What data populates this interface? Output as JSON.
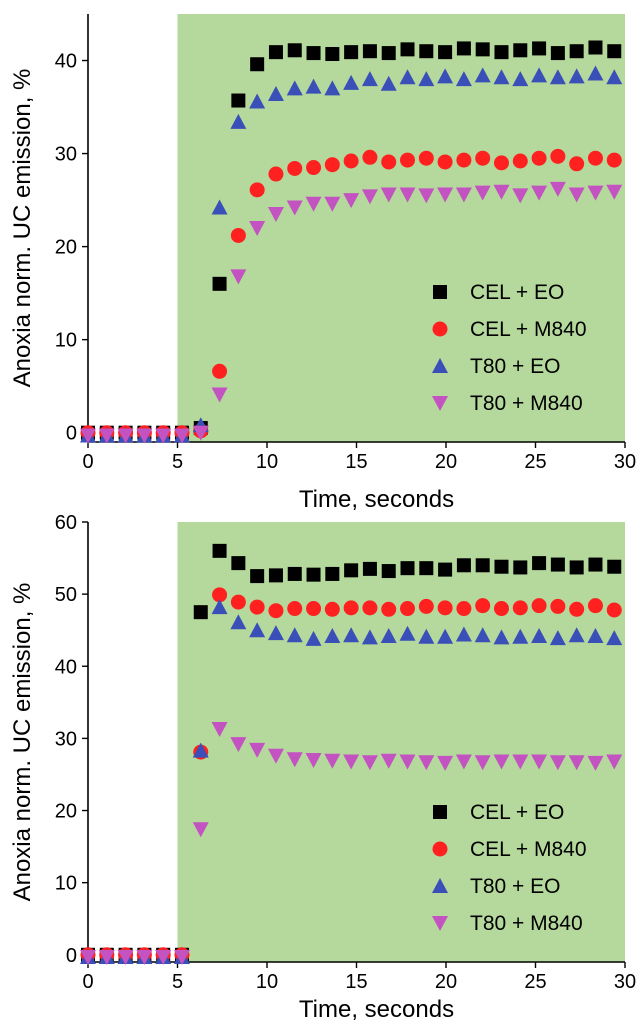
{
  "chart_data": [
    {
      "type": "scatter",
      "title": "",
      "xlabel": "Time, seconds",
      "ylabel": "Anoxia norm. UC emission, %",
      "xlim": [
        0,
        30
      ],
      "ylim": [
        -1,
        45
      ],
      "xticks": [
        0,
        5,
        10,
        15,
        20,
        25,
        30
      ],
      "yticks": [
        0,
        10,
        20,
        30,
        40
      ],
      "shaded_region": {
        "x_from": 5,
        "x_to": 30,
        "color": "#b5d99c"
      },
      "legend_position": "bottom-right",
      "x": [
        0,
        1.05,
        2.1,
        3.15,
        4.2,
        5.25,
        6.3,
        7.35,
        8.4,
        9.45,
        10.5,
        11.55,
        12.6,
        13.65,
        14.7,
        15.75,
        16.8,
        17.85,
        18.9,
        19.95,
        21,
        22.05,
        23.1,
        24.15,
        25.2,
        26.25,
        27.3,
        28.35,
        29.4
      ],
      "series": [
        {
          "name": "CEL + EO",
          "marker": "square",
          "color": "#000000",
          "values": [
            0,
            0,
            0,
            0,
            0,
            0,
            0.5,
            16,
            35.7,
            39.6,
            40.9,
            41.1,
            40.8,
            40.7,
            40.9,
            41.0,
            40.8,
            41.2,
            41.0,
            40.9,
            41.3,
            41.2,
            40.9,
            41.1,
            41.3,
            40.8,
            41.0,
            41.4,
            41.0
          ]
        },
        {
          "name": "CEL + M840",
          "marker": "circle",
          "color": "#ff2020",
          "values": [
            0,
            0,
            0,
            0,
            0,
            0,
            0.2,
            6.6,
            21.2,
            26.1,
            27.8,
            28.4,
            28.5,
            28.8,
            29.2,
            29.6,
            29.1,
            29.3,
            29.5,
            29.1,
            29.3,
            29.5,
            29.0,
            29.2,
            29.5,
            29.7,
            28.9,
            29.5,
            29.3
          ]
        },
        {
          "name": "T80 + EO",
          "marker": "triangle-up",
          "color": "#3a50b8",
          "values": [
            -0.3,
            -0.3,
            -0.3,
            -0.3,
            -0.3,
            -0.3,
            0.8,
            24.2,
            33.4,
            35.6,
            36.4,
            37.0,
            37.2,
            37.0,
            37.6,
            38.0,
            37.5,
            38.2,
            38.0,
            38.3,
            38.0,
            38.4,
            38.2,
            38.0,
            38.4,
            38.2,
            38.3,
            38.6,
            38.2
          ]
        },
        {
          "name": "T80 + M840",
          "marker": "triangle-down",
          "color": "#c253c0",
          "values": [
            -0.3,
            -0.3,
            -0.3,
            -0.3,
            -0.3,
            -0.3,
            0,
            4.1,
            16.8,
            22.0,
            23.5,
            24.2,
            24.6,
            24.6,
            25.0,
            25.4,
            25.6,
            25.6,
            25.5,
            25.6,
            25.6,
            25.8,
            25.9,
            25.5,
            25.8,
            26.2,
            25.6,
            25.8,
            25.9
          ]
        }
      ]
    },
    {
      "type": "scatter",
      "title": "",
      "xlabel": "Time, seconds",
      "ylabel": "Anoxia norm. UC emission, %",
      "xlim": [
        0,
        30
      ],
      "ylim": [
        -1,
        60
      ],
      "xticks": [
        0,
        5,
        10,
        15,
        20,
        25,
        30
      ],
      "yticks": [
        0,
        10,
        20,
        30,
        40,
        50,
        60
      ],
      "shaded_region": {
        "x_from": 5,
        "x_to": 30,
        "color": "#b5d99c"
      },
      "legend_position": "bottom-right",
      "x": [
        0,
        1.05,
        2.1,
        3.15,
        4.2,
        5.25,
        6.3,
        7.35,
        8.4,
        9.45,
        10.5,
        11.55,
        12.6,
        13.65,
        14.7,
        15.75,
        16.8,
        17.85,
        18.9,
        19.95,
        21,
        22.05,
        23.1,
        24.15,
        25.2,
        26.25,
        27.3,
        28.35,
        29.4
      ],
      "series": [
        {
          "name": "CEL + EO",
          "marker": "square",
          "color": "#000000",
          "values": [
            0,
            0,
            0,
            0,
            0,
            0,
            47.5,
            56.0,
            54.3,
            52.5,
            52.6,
            52.8,
            52.7,
            52.8,
            53.3,
            53.5,
            53.2,
            53.6,
            53.6,
            53.4,
            54.0,
            54.0,
            53.8,
            53.7,
            54.3,
            54.1,
            53.7,
            54.1,
            53.8
          ]
        },
        {
          "name": "CEL + M840",
          "marker": "circle",
          "color": "#ff2020",
          "values": [
            0,
            0,
            0,
            0,
            0,
            0,
            28.1,
            49.9,
            48.9,
            48.2,
            47.7,
            48.0,
            48.0,
            47.9,
            48.1,
            48.1,
            47.9,
            48.0,
            48.3,
            48.1,
            48.0,
            48.4,
            48.0,
            48.1,
            48.4,
            48.3,
            47.9,
            48.4,
            47.8
          ]
        },
        {
          "name": "T80 + EO",
          "marker": "triangle-up",
          "color": "#3a50b8",
          "values": [
            -0.3,
            -0.3,
            -0.3,
            -0.3,
            -0.3,
            -0.3,
            28.3,
            48.2,
            46.1,
            45.0,
            44.6,
            44.3,
            43.8,
            44.2,
            44.3,
            44.0,
            44.2,
            44.5,
            44.1,
            44.1,
            44.4,
            44.3,
            44.0,
            44.1,
            44.2,
            43.9,
            44.3,
            44.2,
            43.9
          ]
        },
        {
          "name": "T80 + M840",
          "marker": "triangle-down",
          "color": "#c253c0",
          "values": [
            -0.3,
            -0.3,
            -0.3,
            -0.3,
            -0.3,
            -0.3,
            17.4,
            31.3,
            29.2,
            28.4,
            27.6,
            27.1,
            27.0,
            26.9,
            26.8,
            26.7,
            26.9,
            26.8,
            26.7,
            26.6,
            26.8,
            26.7,
            26.8,
            26.8,
            26.8,
            26.7,
            26.7,
            26.6,
            26.8
          ]
        }
      ]
    }
  ]
}
